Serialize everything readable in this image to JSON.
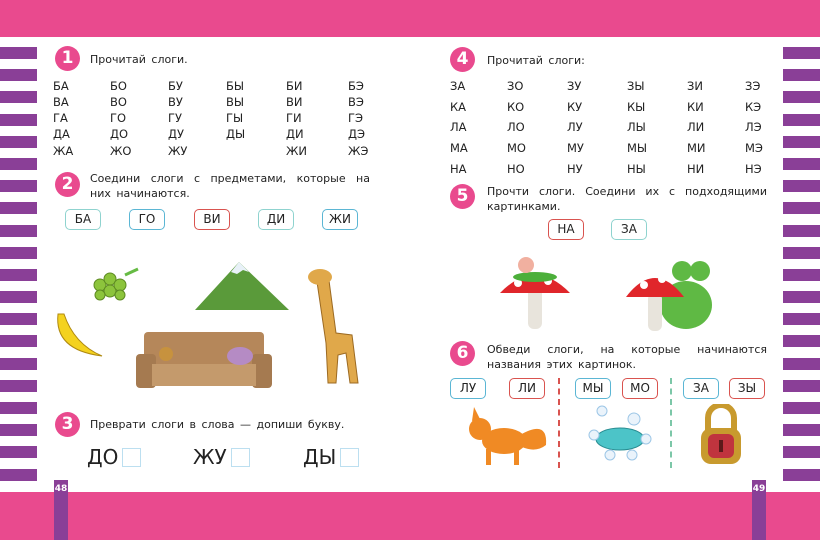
{
  "left_page": {
    "page_number": "48",
    "task1": {
      "number": "1",
      "text": "Прочитай слоги.",
      "rows": [
        [
          "БА",
          "БО",
          "БУ",
          "БЫ",
          "БИ",
          "БЭ"
        ],
        [
          "ВА",
          "ВО",
          "ВУ",
          "ВЫ",
          "ВИ",
          "ВЭ"
        ],
        [
          "ГА",
          "ГО",
          "ГУ",
          "ГЫ",
          "ГИ",
          "ГЭ"
        ],
        [
          "ДА",
          "ДО",
          "ДУ",
          "ДЫ",
          "ДИ",
          "ДЭ"
        ],
        [
          "ЖА",
          "ЖО",
          "ЖУ",
          "",
          "ЖИ",
          "ЖЭ"
        ]
      ]
    },
    "task2": {
      "number": "2",
      "text": "Соедини слоги с предметами, которые на них начинаются.",
      "syllables": [
        "БА",
        "ГО",
        "ВИ",
        "ДИ",
        "ЖИ"
      ],
      "pictures": [
        "grapes",
        "mountain",
        "banana",
        "sofa",
        "giraffe"
      ]
    },
    "task3": {
      "number": "3",
      "text": "Преврати слоги в слова — допиши букву.",
      "words": [
        "ДО",
        "ЖУ",
        "ДЫ"
      ]
    }
  },
  "right_page": {
    "page_number": "49",
    "task4": {
      "number": "4",
      "text": "Прочитай слоги:",
      "rows": [
        [
          "ЗА",
          "ЗО",
          "ЗУ",
          "ЗЫ",
          "ЗИ",
          "ЗЭ"
        ],
        [
          "КА",
          "КО",
          "КУ",
          "КЫ",
          "КИ",
          "КЭ"
        ],
        [
          "ЛА",
          "ЛО",
          "ЛУ",
          "ЛЫ",
          "ЛИ",
          "ЛЭ"
        ],
        [
          "МА",
          "МО",
          "МУ",
          "МЫ",
          "МИ",
          "МЭ"
        ],
        [
          "НА",
          "НО",
          "НУ",
          "НЫ",
          "НИ",
          "НЭ"
        ]
      ]
    },
    "task5": {
      "number": "5",
      "text": "Прочти слоги. Соедини их с подходящими картинками.",
      "syllables": [
        "НА",
        "ЗА"
      ],
      "pictures": [
        "caterpillar-on-mushroom",
        "frog-on-mushroom"
      ]
    },
    "task6": {
      "number": "6",
      "text": "Обведи слоги, на которые начинаются названия этих картинок.",
      "syllables": [
        "ЛУ",
        "ЛИ",
        "МЫ",
        "МО",
        "ЗА",
        "ЗЫ"
      ],
      "pictures": [
        "fox",
        "soap",
        "lock"
      ]
    }
  },
  "colors": {
    "pink": "#e94a8e",
    "purple": "#8a3f97",
    "blue": "#5bb6d4",
    "red": "#d9534f"
  }
}
